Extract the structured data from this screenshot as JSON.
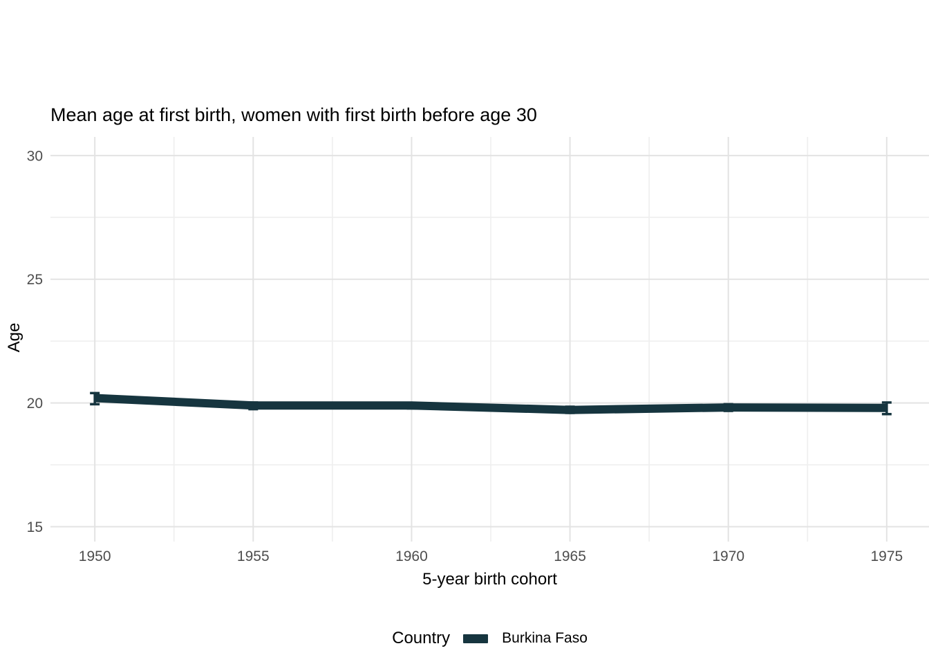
{
  "chart_data": {
    "type": "line",
    "title": "Mean age at first birth, women with first birth before age 30",
    "xlabel": "5-year birth cohort",
    "ylabel": "Age",
    "xlim": [
      1948.6,
      1976.4
    ],
    "ylim": [
      14.4,
      30.75
    ],
    "x_ticks": [
      1950,
      1955,
      1960,
      1965,
      1970,
      1975
    ],
    "x_minor": [
      1952.5,
      1957.5,
      1962.5,
      1967.5,
      1972.5
    ],
    "y_ticks": [
      15,
      20,
      25,
      30
    ],
    "y_minor": [
      17.5,
      22.5,
      27.5
    ],
    "grid": "on",
    "legend_position": "bottom",
    "series": [
      {
        "name": "Burkina Faso",
        "color": "#16353F",
        "points": [
          {
            "year": 1950,
            "age": 20.2,
            "lo": 19.95,
            "hi": 20.4
          },
          {
            "year": 1955,
            "age": 19.9,
            "lo": 19.75,
            "hi": 20.02
          },
          {
            "year": 1960,
            "age": 19.9,
            "lo": 19.78,
            "hi": 20.0
          },
          {
            "year": 1965,
            "age": 19.72,
            "lo": 19.6,
            "hi": 19.85
          },
          {
            "year": 1970,
            "age": 19.82,
            "lo": 19.68,
            "hi": 19.95
          },
          {
            "year": 1975,
            "age": 19.8,
            "lo": 19.55,
            "hi": 20.02
          }
        ]
      }
    ]
  },
  "legend": {
    "title": "Country",
    "items": [
      {
        "label": "Burkina Faso",
        "color": "#16353F"
      }
    ]
  },
  "colors": {
    "background": "#ffffff",
    "line": "#16353F",
    "grid_major": "#E3E3E3",
    "grid_minor": "#EFEFEF",
    "axis_text": "#4D4D4D",
    "title_text": "#000000"
  }
}
